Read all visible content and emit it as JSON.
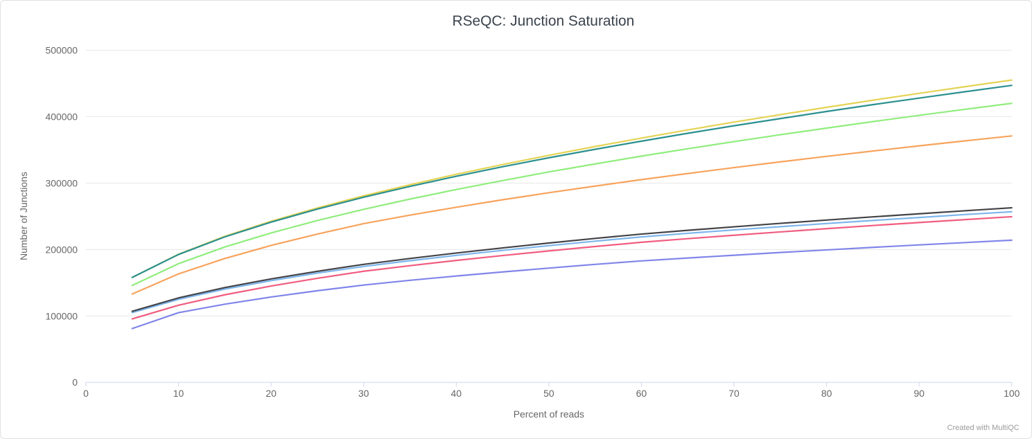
{
  "footer": {
    "credit": "Created with MultiQC"
  },
  "colors": {
    "title": "#3a434d",
    "axis_label": "#666666",
    "tick_label": "#666666",
    "grid": "#e6e6e6",
    "axis_line": "#ccd6eb",
    "credit": "#9b9b9b",
    "border": "#e0e0e0",
    "background": "#ffffff"
  },
  "chart_data": {
    "type": "line",
    "title": "RSeQC: Junction Saturation",
    "xlabel": "Percent of reads",
    "ylabel": "Number of Junctions",
    "xlim": [
      0,
      100
    ],
    "ylim": [
      0,
      500000
    ],
    "xticks": [
      0,
      10,
      20,
      30,
      40,
      50,
      60,
      70,
      80,
      90,
      100
    ],
    "yticks": [
      0,
      100000,
      200000,
      300000,
      400000,
      500000
    ],
    "grid": "horizontal",
    "legend": "none",
    "x": [
      5,
      10,
      15,
      20,
      25,
      30,
      35,
      40,
      45,
      50,
      55,
      60,
      65,
      70,
      75,
      80,
      85,
      90,
      95,
      100
    ],
    "series": [
      {
        "name": "series-1",
        "color": "#7cb5ec",
        "values": [
          105000,
          125000,
          140300,
          153100,
          164400,
          174500,
          183200,
          191200,
          198700,
          205800,
          212600,
          219000,
          224400,
          229500,
          234400,
          239100,
          243700,
          248200,
          252600,
          256800
        ]
      },
      {
        "name": "series-2",
        "color": "#434348",
        "values": [
          107000,
          127200,
          142700,
          155700,
          167200,
          177600,
          186500,
          194700,
          202400,
          209700,
          216700,
          223300,
          228900,
          234200,
          239300,
          244300,
          249100,
          253800,
          258400,
          262800
        ]
      },
      {
        "name": "series-3",
        "color": "#90ed7d",
        "values": [
          146000,
          178700,
          203800,
          224900,
          243600,
          260400,
          275900,
          290300,
          303800,
          316700,
          328800,
          340500,
          351600,
          362400,
          372700,
          382700,
          392500,
          401900,
          411100,
          420000
        ]
      },
      {
        "name": "series-4",
        "color": "#f7a35c",
        "values": [
          133000,
          163300,
          186500,
          206100,
          223300,
          238900,
          251700,
          263600,
          274900,
          285500,
          295500,
          305200,
          314400,
          323300,
          331900,
          340200,
          348200,
          356000,
          363600,
          371000
        ]
      },
      {
        "name": "series-5",
        "color": "#8085e9",
        "values": [
          81000,
          104900,
          117700,
          128500,
          138000,
          146500,
          153600,
          160100,
          166200,
          172000,
          177600,
          182800,
          187200,
          191400,
          195500,
          199400,
          203200,
          206900,
          210500,
          214000
        ]
      },
      {
        "name": "series-6",
        "color": "#f15c80",
        "values": [
          95600,
          116100,
          131800,
          145000,
          156700,
          167300,
          175700,
          183600,
          190900,
          197900,
          204500,
          210900,
          216300,
          221500,
          226500,
          231400,
          236100,
          240600,
          245100,
          249400
        ]
      },
      {
        "name": "series-7",
        "color": "#e4d354",
        "values": [
          158000,
          192900,
          219800,
          242500,
          262600,
          280800,
          297500,
          313200,
          327900,
          341800,
          355000,
          367700,
          379900,
          391700,
          403000,
          414000,
          424700,
          435100,
          445200,
          455000
        ]
      },
      {
        "name": "series-8",
        "color": "#2b908f",
        "values": [
          158000,
          192500,
          219000,
          241200,
          260900,
          278700,
          295000,
          310200,
          324500,
          338000,
          350800,
          363100,
          374900,
          386200,
          397100,
          407700,
          418000,
          427900,
          437600,
          447000
        ]
      }
    ]
  }
}
